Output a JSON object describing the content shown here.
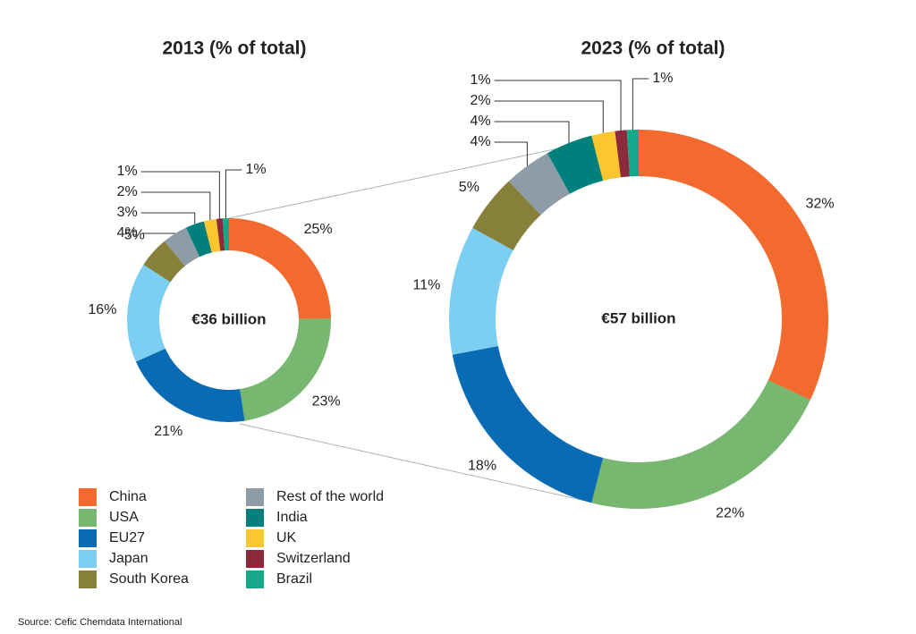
{
  "chart_data": [
    {
      "type": "donut",
      "title": "2013 (% of total)",
      "center_label": "€36 billion",
      "categories": [
        "China",
        "USA",
        "EU27",
        "Japan",
        "South Korea",
        "Rest of the world",
        "India",
        "UK",
        "Switzerland",
        "Brazil"
      ],
      "values": [
        25,
        23,
        21,
        16,
        5,
        4,
        3,
        2,
        1,
        1
      ],
      "value_labels": [
        "25%",
        "23%",
        "21%",
        "16%",
        "5%",
        "4%",
        "3%",
        "2%",
        "1%",
        "1%"
      ],
      "colors": [
        "#f26a2e",
        "#78b76f",
        "#0a6bb5",
        "#7ccff2",
        "#86803a",
        "#8d9ca6",
        "#00807c",
        "#fcc72e",
        "#8b2a3a",
        "#13a889"
      ]
    },
    {
      "type": "donut",
      "title": "2023 (% of total)",
      "center_label": "€57 billion",
      "categories": [
        "China",
        "USA",
        "EU27",
        "Japan",
        "South Korea",
        "Rest of the world",
        "India",
        "UK",
        "Switzerland",
        "Brazil"
      ],
      "values": [
        32,
        22,
        18,
        11,
        5,
        4,
        4,
        2,
        1,
        1
      ],
      "value_labels": [
        "32%",
        "22%",
        "18%",
        "11%",
        "5%",
        "4%",
        "4%",
        "2%",
        "1%",
        "1%"
      ],
      "colors": [
        "#f26a2e",
        "#78b76f",
        "#0a6bb5",
        "#7ccff2",
        "#86803a",
        "#8d9ca6",
        "#00807c",
        "#fcc72e",
        "#8b2a3a",
        "#13a889"
      ]
    }
  ],
  "source": "Source: Cefic Chemdata International"
}
